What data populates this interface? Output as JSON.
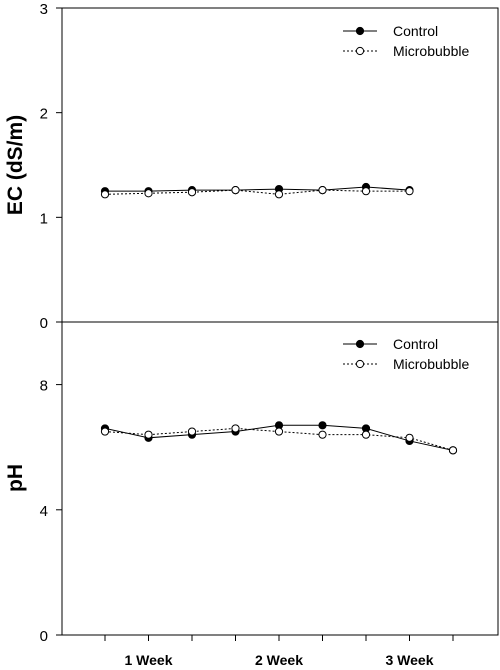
{
  "chart_data": [
    {
      "type": "line",
      "ylabel": "EC (dS/m)",
      "xlabel": "",
      "ylim": [
        0,
        3
      ],
      "yticks": [
        "0",
        "1",
        "2",
        "3"
      ],
      "x": [
        1,
        2,
        3,
        4,
        5,
        6,
        7,
        8
      ],
      "series": [
        {
          "name": "Control",
          "values": [
            1.25,
            1.25,
            1.26,
            1.26,
            1.27,
            1.26,
            1.29,
            1.26
          ]
        },
        {
          "name": "Microbubble",
          "values": [
            1.22,
            1.23,
            1.24,
            1.26,
            1.22,
            1.26,
            1.25,
            1.25
          ]
        }
      ],
      "legend_position": "top-right",
      "grid": false
    },
    {
      "type": "line",
      "ylabel": "pH",
      "xlabel": "",
      "ylim": [
        0,
        10
      ],
      "yticks": [
        "0",
        "4",
        "8"
      ],
      "x": [
        1,
        2,
        3,
        4,
        5,
        6,
        7,
        8,
        9
      ],
      "xtick_labels": [
        {
          "at": 2,
          "label": "1 Week"
        },
        {
          "at": 5,
          "label": "2 Week"
        },
        {
          "at": 8,
          "label": "3 Week"
        }
      ],
      "series": [
        {
          "name": "Control",
          "values": [
            6.6,
            6.3,
            6.4,
            6.5,
            6.7,
            6.7,
            6.6,
            6.2,
            5.9
          ]
        },
        {
          "name": "Microbubble",
          "values": [
            6.5,
            6.4,
            6.5,
            6.6,
            6.5,
            6.4,
            6.4,
            6.3,
            5.9
          ]
        }
      ],
      "legend_position": "top-right",
      "grid": false
    }
  ]
}
